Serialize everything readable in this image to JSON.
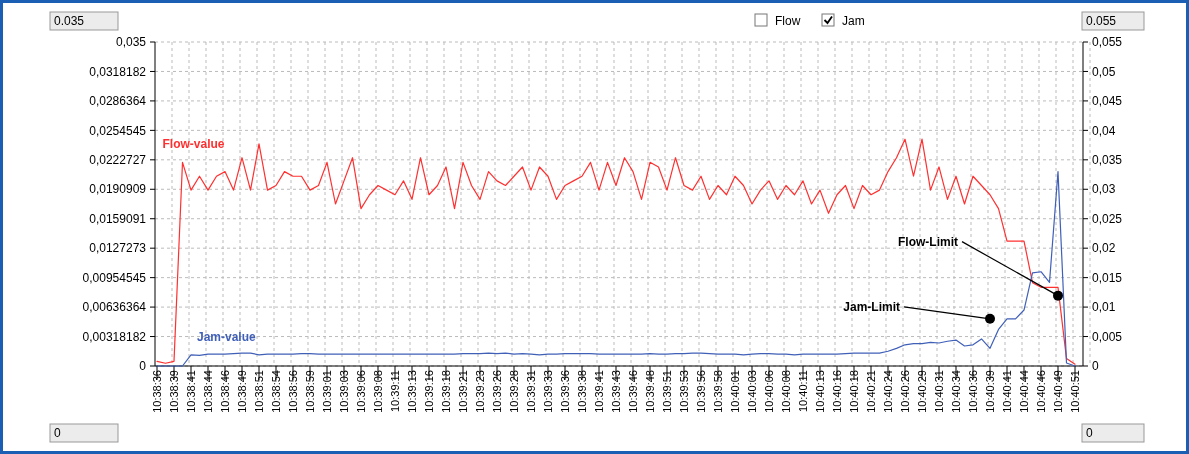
{
  "chart_data": {
    "type": "line",
    "categories": [
      "10:38:36",
      null,
      "10:38:39",
      null,
      "10:38:41",
      null,
      "10:38:44",
      null,
      "10:38:46",
      null,
      "10:38:49",
      null,
      "10:38:51",
      null,
      "10:38:54",
      null,
      "10:38:56",
      null,
      "10:38:59",
      null,
      "10:39:01",
      null,
      "10:39:03",
      null,
      "10:39:06",
      null,
      "10:39:08",
      null,
      "10:39:11",
      null,
      "10:39:13",
      null,
      "10:39:16",
      null,
      "10:39:18",
      null,
      "10:39:21",
      null,
      "10:39:23",
      null,
      "10:39:26",
      null,
      "10:39:28",
      null,
      "10:39:31",
      null,
      "10:39:33",
      null,
      "10:39:36",
      null,
      "10:39:38",
      null,
      "10:39:41",
      null,
      "10:39:43",
      null,
      "10:39:46",
      null,
      "10:39:48",
      null,
      "10:39:51",
      null,
      "10:39:53",
      null,
      "10:39:56",
      null,
      "10:39:58",
      null,
      "10:40:01",
      null,
      "10:40:03",
      null,
      "10:40:06",
      null,
      "10:40:08",
      null,
      "10:40:11",
      null,
      "10:40:13",
      null,
      "10:40:16",
      null,
      "10:40:18",
      null,
      "10:40:21",
      null,
      "10:40:24",
      null,
      "10:40:26",
      null,
      "10:40:29",
      null,
      "10:40:31",
      null,
      "10:40:34",
      null,
      "10:40:36",
      null,
      "10:40:39",
      null,
      "10:40:41",
      null,
      "10:40:44",
      null,
      "10:40:46",
      null,
      "10:40:49",
      null,
      "10:40:51"
    ],
    "series": [
      {
        "name": "Flow-value",
        "color": "#ff3030",
        "values": [
          0.0005,
          0.0003,
          0.0005,
          0.022,
          0.019,
          0.0205,
          0.019,
          0.0205,
          0.021,
          0.019,
          0.0225,
          0.019,
          0.024,
          0.019,
          0.0195,
          0.021,
          0.0205,
          0.0205,
          0.019,
          0.0195,
          0.022,
          0.0175,
          0.02,
          0.0225,
          0.017,
          0.0185,
          0.0195,
          0.019,
          0.0185,
          0.02,
          0.018,
          0.0225,
          0.0185,
          0.0195,
          0.0215,
          0.017,
          0.022,
          0.0195,
          0.018,
          0.021,
          0.02,
          0.0195,
          0.0205,
          0.0215,
          0.019,
          0.0215,
          0.0205,
          0.018,
          0.0195,
          0.02,
          0.0205,
          0.022,
          0.019,
          0.022,
          0.0195,
          0.0225,
          0.021,
          0.018,
          0.022,
          0.0215,
          0.019,
          0.0225,
          0.0195,
          0.019,
          0.0205,
          0.018,
          0.0195,
          0.0185,
          0.0205,
          0.0195,
          0.0175,
          0.019,
          0.02,
          0.018,
          0.0195,
          0.0185,
          0.02,
          0.0175,
          0.019,
          0.0165,
          0.0185,
          0.0195,
          0.017,
          0.0195,
          0.0185,
          0.019,
          0.021,
          0.0225,
          0.0245,
          0.0205,
          0.0245,
          0.019,
          0.0215,
          0.018,
          0.0205,
          0.0175,
          0.0205,
          0.0195,
          0.0185,
          0.017,
          0.0135,
          0.0135,
          0.0135,
          0.009,
          0.0085,
          0.0085,
          0.0085,
          0.0008,
          0.0002
        ]
      },
      {
        "name": "Jam-value",
        "color": "#4060b8",
        "axis": "y2",
        "values": [
          0,
          0,
          0,
          0,
          0.0019,
          0.0018,
          0.002,
          0.002,
          0.002,
          0.0021,
          0.0022,
          0.0022,
          0.0019,
          0.002,
          0.002,
          0.002,
          0.002,
          0.0021,
          0.0021,
          0.002,
          0.002,
          0.002,
          0.002,
          0.002,
          0.002,
          0.002,
          0.002,
          0.002,
          0.002,
          0.002,
          0.002,
          0.002,
          0.002,
          0.002,
          0.002,
          0.002,
          0.0021,
          0.0021,
          0.0021,
          0.0022,
          0.0021,
          0.0022,
          0.002,
          0.0021,
          0.002,
          0.0019,
          0.002,
          0.002,
          0.0021,
          0.0021,
          0.0021,
          0.0021,
          0.002,
          0.002,
          0.002,
          0.002,
          0.002,
          0.002,
          0.0021,
          0.002,
          0.002,
          0.0021,
          0.0021,
          0.0022,
          0.0022,
          0.0021,
          0.002,
          0.002,
          0.002,
          0.0019,
          0.002,
          0.0021,
          0.0021,
          0.002,
          0.002,
          0.0019,
          0.002,
          0.002,
          0.002,
          0.002,
          0.002,
          0.0021,
          0.0022,
          0.0022,
          0.0022,
          0.0022,
          0.0025,
          0.003,
          0.0036,
          0.0038,
          0.0038,
          0.004,
          0.0039,
          0.0042,
          0.0044,
          0.0034,
          0.0036,
          0.0046,
          0.003,
          0.0062,
          0.008,
          0.008,
          0.0095,
          0.0158,
          0.016,
          0.0142,
          0.033,
          0.0005,
          0
        ]
      }
    ],
    "ylim": [
      0,
      0.035
    ],
    "yticks": [
      0,
      {
        "value": 0.00318182,
        "label": "0,00318182"
      },
      {
        "value": 0.00636364,
        "label": "0,00636364"
      },
      {
        "value": 0.00954545,
        "label": "0,00954545"
      },
      {
        "value": 0.0127273,
        "label": "0,0127273"
      },
      {
        "value": 0.0159091,
        "label": "0,0159091"
      },
      {
        "value": 0.0190909,
        "label": "0,0190909"
      },
      {
        "value": 0.0222727,
        "label": "0,0222727"
      },
      {
        "value": 0.0254545,
        "label": "0,0254545"
      },
      {
        "value": 0.0286364,
        "label": "0,0286364"
      },
      {
        "value": 0.0318182,
        "label": "0,0318182"
      },
      {
        "value": 0.035,
        "label": "0,035"
      }
    ],
    "y2lim": [
      0,
      0.055
    ],
    "y2ticks": [
      0,
      {
        "value": 0.005,
        "label": "0,005"
      },
      {
        "value": 0.01,
        "label": "0,01"
      },
      {
        "value": 0.015,
        "label": "0,015"
      },
      {
        "value": 0.02,
        "label": "0,02"
      },
      {
        "value": 0.025,
        "label": "0,025"
      },
      {
        "value": 0.03,
        "label": "0,03"
      },
      {
        "value": 0.035,
        "label": "0,035"
      },
      {
        "value": 0.04,
        "label": "0,04"
      },
      {
        "value": 0.045,
        "label": "0,045"
      },
      {
        "value": 0.05,
        "label": "0,05"
      },
      {
        "value": 0.055,
        "label": "0,055"
      }
    ],
    "grid": true,
    "annotations": [
      "0.035",
      "Flow",
      "Jam",
      "0.055",
      "0",
      "0",
      {
        "text": "Flow-Limit",
        "x": "10:40:49",
        "y": 0.0076
      },
      {
        "text": "Jam-Limit",
        "x": "10:40:39",
        "y": 0.0051
      }
    ]
  }
}
